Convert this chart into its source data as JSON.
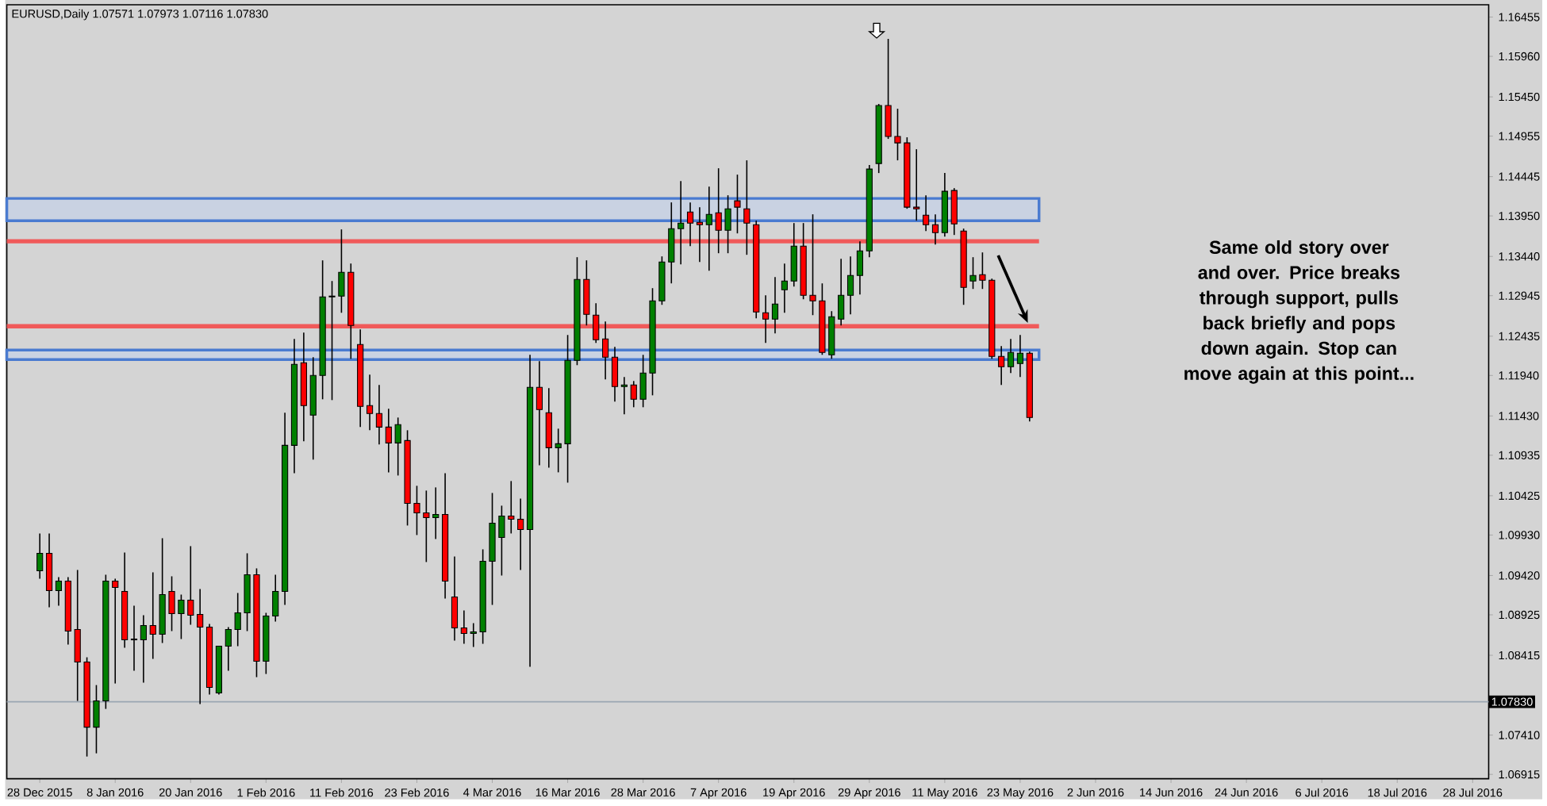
{
  "chart_data": {
    "type": "candlestick",
    "title": "EURUSD,Daily  1.07571 1.07973 1.07116 1.07830",
    "categories": [
      "28 Dec 2015",
      null,
      null,
      null,
      null,
      null,
      null,
      null,
      "8 Jan 2016",
      null,
      null,
      null,
      null,
      null,
      null,
      null,
      "20 Jan 2016",
      null,
      null,
      null,
      null,
      null,
      null,
      null,
      "1 Feb 2016",
      null,
      null,
      null,
      null,
      null,
      null,
      null,
      "11 Feb 2016",
      null,
      null,
      null,
      null,
      null,
      null,
      null,
      "23 Feb 2016",
      null,
      null,
      null,
      null,
      null,
      null,
      null,
      "4 Mar 2016",
      null,
      null,
      null,
      null,
      null,
      null,
      null,
      "16 Mar 2016",
      null,
      null,
      null,
      null,
      null,
      null,
      null,
      "28 Mar 2016",
      null,
      null,
      null,
      null,
      null,
      null,
      null,
      "7 Apr 2016",
      null,
      null,
      null,
      null,
      null,
      null,
      null,
      "19 Apr 2016",
      null,
      null,
      null,
      null,
      null,
      null,
      null,
      "29 Apr 2016",
      null,
      null,
      null,
      null,
      null,
      null,
      null,
      "11 May 2016",
      null,
      null,
      null,
      null,
      null,
      null,
      null,
      "23 May 2016",
      null,
      null,
      null,
      null,
      null,
      null,
      null,
      "2 Jun 2016",
      null,
      null,
      null,
      null,
      null,
      null,
      null,
      "14 Jun 2016",
      null,
      null,
      null,
      null,
      null,
      null,
      null,
      "24 Jun 2016",
      null,
      null,
      null,
      null,
      null,
      null,
      null,
      "6 Jul 2016",
      null,
      null,
      null,
      null,
      null,
      null,
      null,
      "18 Jul 2016",
      null,
      null,
      null,
      null,
      null,
      null,
      null,
      "28 Jul 2016",
      null
    ],
    "ohlc": [
      [
        1.0948,
        1.0995,
        1.0938,
        1.097
      ],
      [
        1.097,
        1.0995,
        1.0902,
        1.0923
      ],
      [
        1.0923,
        1.094,
        1.0904,
        1.0935
      ],
      [
        1.0935,
        1.094,
        1.0855,
        1.0872
      ],
      [
        1.0874,
        1.0949,
        1.0784,
        1.0833
      ],
      [
        1.0833,
        1.0839,
        1.0714,
        1.0751
      ],
      [
        1.0751,
        1.0804,
        1.0718,
        1.0784
      ],
      [
        1.0784,
        1.0943,
        1.0774,
        1.0935
      ],
      [
        1.0935,
        1.0938,
        1.0806,
        1.0927
      ],
      [
        1.0922,
        1.0971,
        1.0851,
        1.0861
      ],
      [
        1.0861,
        1.0904,
        1.0822,
        1.0862
      ],
      [
        1.0861,
        1.0892,
        1.0807,
        1.0879
      ],
      [
        1.0879,
        1.0946,
        1.0837,
        1.0868
      ],
      [
        1.0868,
        1.0989,
        1.0857,
        1.0918
      ],
      [
        1.0922,
        1.0941,
        1.0872,
        1.0894
      ],
      [
        1.0894,
        1.0918,
        1.0862,
        1.0911
      ],
      [
        1.0911,
        1.0979,
        1.088,
        1.0892
      ],
      [
        1.0893,
        1.0925,
        1.078,
        1.0877
      ],
      [
        1.0877,
        1.0881,
        1.0792,
        1.0801
      ],
      [
        1.0794,
        1.0853,
        1.0792,
        1.0853
      ],
      [
        1.0853,
        1.0877,
        1.0822,
        1.0874
      ],
      [
        1.0874,
        1.092,
        1.0853,
        1.0895
      ],
      [
        1.0895,
        1.097,
        1.0872,
        1.0943
      ],
      [
        1.0943,
        1.0951,
        1.0814,
        1.0834
      ],
      [
        1.0834,
        1.0895,
        1.0818,
        1.0891
      ],
      [
        1.0891,
        1.0943,
        1.0884,
        1.0922
      ],
      [
        1.0922,
        1.1147,
        1.0905,
        1.1106
      ],
      [
        1.1106,
        1.124,
        1.1071,
        1.1208
      ],
      [
        1.121,
        1.1248,
        1.1111,
        1.1156
      ],
      [
        1.1144,
        1.1217,
        1.1088,
        1.1194
      ],
      [
        1.1194,
        1.1339,
        1.1164,
        1.1293
      ],
      [
        1.1293,
        1.1313,
        1.1163,
        1.1294
      ],
      [
        1.1294,
        1.1378,
        1.1273,
        1.1324
      ],
      [
        1.1324,
        1.1335,
        1.1215,
        1.1257
      ],
      [
        1.1233,
        1.1252,
        1.1129,
        1.1155
      ],
      [
        1.1156,
        1.1195,
        1.1125,
        1.1146
      ],
      [
        1.1146,
        1.1182,
        1.1107,
        1.1129
      ],
      [
        1.1129,
        1.1152,
        1.1072,
        1.1109
      ],
      [
        1.1109,
        1.1141,
        1.1068,
        1.1132
      ],
      [
        1.1112,
        1.1125,
        1.1005,
        1.1033
      ],
      [
        1.1033,
        1.1055,
        1.0993,
        1.1021
      ],
      [
        1.1021,
        1.1049,
        1.0959,
        1.1015
      ],
      [
        1.1015,
        1.1053,
        1.0988,
        1.1019
      ],
      [
        1.1019,
        1.1071,
        1.0913,
        1.0935
      ],
      [
        1.0915,
        1.0966,
        1.086,
        1.0876
      ],
      [
        1.0876,
        1.0898,
        1.0856,
        1.0869
      ],
      [
        1.0869,
        1.0882,
        1.0852,
        1.0871
      ],
      [
        1.0871,
        1.0975,
        1.0856,
        1.096
      ],
      [
        1.096,
        1.1046,
        1.0905,
        1.1008
      ],
      [
        1.099,
        1.103,
        1.0942,
        1.1017
      ],
      [
        1.1017,
        1.1061,
        1.0995,
        1.1013
      ],
      [
        1.1013,
        1.1039,
        1.0949,
        1.1
      ],
      [
        1.1,
        1.122,
        1.0827,
        1.1179
      ],
      [
        1.1179,
        1.1212,
        1.1081,
        1.1151
      ],
      [
        1.1147,
        1.1178,
        1.1078,
        1.1103
      ],
      [
        1.1103,
        1.1127,
        1.1072,
        1.1108
      ],
      [
        1.1108,
        1.1245,
        1.1059,
        1.1213
      ],
      [
        1.1213,
        1.1343,
        1.1207,
        1.1315
      ],
      [
        1.1315,
        1.1339,
        1.1257,
        1.1271
      ],
      [
        1.127,
        1.1285,
        1.1235,
        1.1239
      ],
      [
        1.124,
        1.1262,
        1.1189,
        1.1217
      ],
      [
        1.1217,
        1.123,
        1.1161,
        1.118
      ],
      [
        1.118,
        1.1192,
        1.1145,
        1.1182
      ],
      [
        1.1182,
        1.1187,
        1.1154,
        1.1164
      ],
      [
        1.1164,
        1.122,
        1.1154,
        1.1197
      ],
      [
        1.1197,
        1.1304,
        1.1169,
        1.1288
      ],
      [
        1.1288,
        1.1344,
        1.1283,
        1.1337
      ],
      [
        1.1337,
        1.1412,
        1.131,
        1.1379
      ],
      [
        1.1379,
        1.1439,
        1.1334,
        1.1386
      ],
      [
        1.14,
        1.1412,
        1.1357,
        1.1386
      ],
      [
        1.1387,
        1.1406,
        1.1337,
        1.1384
      ],
      [
        1.1384,
        1.1432,
        1.1326,
        1.1397
      ],
      [
        1.1399,
        1.1455,
        1.1348,
        1.1377
      ],
      [
        1.1377,
        1.1421,
        1.1348,
        1.1404
      ],
      [
        1.1414,
        1.1447,
        1.1373,
        1.1406
      ],
      [
        1.1404,
        1.1465,
        1.1346,
        1.1386
      ],
      [
        1.1384,
        1.1389,
        1.1266,
        1.1274
      ],
      [
        1.1273,
        1.1295,
        1.1235,
        1.1265
      ],
      [
        1.1265,
        1.1318,
        1.1247,
        1.1284
      ],
      [
        1.1302,
        1.1335,
        1.1273,
        1.1313
      ],
      [
        1.1313,
        1.1386,
        1.1306,
        1.1357
      ],
      [
        1.1357,
        1.1386,
        1.129,
        1.1295
      ],
      [
        1.1295,
        1.1397,
        1.127,
        1.1288
      ],
      [
        1.1288,
        1.131,
        1.122,
        1.1223
      ],
      [
        1.122,
        1.1275,
        1.1215,
        1.1268
      ],
      [
        1.1265,
        1.1341,
        1.1257,
        1.1295
      ],
      [
        1.1295,
        1.1344,
        1.1271,
        1.132
      ],
      [
        1.132,
        1.1363,
        1.1296,
        1.1351
      ],
      [
        1.1351,
        1.1459,
        1.1343,
        1.1454
      ],
      [
        1.1461,
        1.1536,
        1.1449,
        1.1534
      ],
      [
        1.1534,
        1.1618,
        1.1492,
        1.1495
      ],
      [
        1.1495,
        1.153,
        1.1465,
        1.1487
      ],
      [
        1.1487,
        1.1494,
        1.1404,
        1.1406
      ],
      [
        1.1406,
        1.1479,
        1.1389,
        1.1404
      ],
      [
        1.1396,
        1.1421,
        1.1376,
        1.1384
      ],
      [
        1.1384,
        1.1397,
        1.1359,
        1.1374
      ],
      [
        1.1374,
        1.1449,
        1.1369,
        1.1426
      ],
      [
        1.1427,
        1.143,
        1.1371,
        1.1385
      ],
      [
        1.1376,
        1.1379,
        1.1283,
        1.1305
      ],
      [
        1.1313,
        1.1343,
        1.1303,
        1.132
      ],
      [
        1.1321,
        1.1349,
        1.1303,
        1.1314
      ],
      [
        1.1314,
        1.1316,
        1.1215,
        1.1218
      ],
      [
        1.1218,
        1.1231,
        1.1182,
        1.1205
      ],
      [
        1.1205,
        1.124,
        1.1197,
        1.1223
      ],
      [
        1.1209,
        1.1245,
        1.1192,
        1.1222
      ],
      [
        1.1222,
        1.1224,
        1.1136,
        1.1141
      ],
      null,
      null,
      null,
      null,
      null,
      null,
      null,
      null,
      null,
      null,
      null,
      null,
      null,
      null,
      null,
      null,
      null,
      null,
      null,
      null,
      null,
      null,
      null,
      null,
      null,
      null,
      null,
      null,
      null,
      null,
      null,
      null,
      null,
      null,
      null,
      null,
      null,
      null,
      null,
      null,
      null,
      null,
      null,
      null,
      null,
      null,
      null,
      null
    ],
    "colors": [
      "#008000",
      "#ff0000",
      "#008000",
      "#ff0000",
      "#ff0000",
      "#ff0000",
      "#008000",
      "#008000",
      "#ff0000",
      "#ff0000",
      "#008000",
      "#008000",
      "#ff0000",
      "#008000",
      "#ff0000",
      "#008000",
      "#ff0000",
      "#ff0000",
      "#ff0000",
      "#008000",
      "#008000",
      "#008000",
      "#008000",
      "#ff0000",
      "#008000",
      "#008000",
      "#008000",
      "#008000",
      "#ff0000",
      "#008000",
      "#008000",
      "#008000",
      "#008000",
      "#ff0000",
      "#ff0000",
      "#ff0000",
      "#ff0000",
      "#ff0000",
      "#008000",
      "#ff0000",
      "#ff0000",
      "#ff0000",
      "#008000",
      "#ff0000",
      "#ff0000",
      "#ff0000",
      "#008000",
      "#008000",
      "#008000",
      "#008000",
      "#ff0000",
      "#ff0000",
      "#008000",
      "#ff0000",
      "#ff0000",
      "#008000",
      "#008000",
      "#008000",
      "#ff0000",
      "#ff0000",
      "#ff0000",
      "#ff0000",
      "#008000",
      "#ff0000",
      "#008000",
      "#008000",
      "#008000",
      "#008000",
      "#008000",
      "#ff0000",
      "#ff0000",
      "#008000",
      "#ff0000",
      "#008000",
      "#ff0000",
      "#ff0000",
      "#ff0000",
      "#ff0000",
      "#008000",
      "#008000",
      "#008000",
      "#ff0000",
      "#ff0000",
      "#ff0000",
      "#008000",
      "#008000",
      "#008000",
      "#008000",
      "#008000",
      "#008000",
      "#ff0000",
      "#ff0000",
      "#ff0000",
      "#ff0000",
      "#ff0000",
      "#ff0000",
      "#008000",
      "#ff0000",
      "#ff0000",
      "#008000",
      "#ff0000",
      "#ff0000",
      "#ff0000",
      "#008000",
      "#008000",
      "#ff0000",
      null,
      null,
      null,
      null,
      null,
      null,
      null,
      null,
      null,
      null,
      null,
      null,
      null,
      null,
      null,
      null,
      null,
      null,
      null,
      null,
      null,
      null,
      null,
      null,
      null,
      null,
      null,
      null,
      null,
      null,
      null,
      null,
      null,
      null,
      null,
      null,
      null,
      null,
      null,
      null,
      null,
      null,
      null,
      null,
      null,
      null,
      null,
      null
    ],
    "ylim": [
      1.0686,
      1.1661
    ],
    "yticks": [
      1.16455,
      {
        "value": 1.1596,
        "label": "1.15960"
      },
      {
        "value": 1.1545,
        "label": "1.15450"
      },
      1.14955,
      1.14445,
      {
        "value": 1.1395,
        "label": "1.13950"
      },
      {
        "value": 1.1344,
        "label": "1.13440"
      },
      1.12945,
      1.12435,
      {
        "value": 1.1194,
        "label": "1.11940"
      },
      {
        "value": 1.1143,
        "label": "1.11430"
      },
      1.10935,
      1.10425,
      {
        "value": 1.0993,
        "label": "1.09930"
      },
      {
        "value": 1.0942,
        "label": "1.09420"
      },
      1.08925,
      1.08415,
      {
        "value": 1.0741,
        "label": "1.07410"
      },
      1.06915
    ],
    "ref_lines": [
      {
        "axis": "y",
        "value": 1.0783,
        "label": "1.07830",
        "color": "#9aa6b2"
      },
      {
        "axis": "y",
        "value": 1.1363,
        "color": "#f05a5a"
      },
      {
        "axis": "y",
        "value": 1.1256,
        "color": "#f05a5a"
      }
    ],
    "bands": [
      {
        "axis": "y",
        "from": 1.1389,
        "to": 1.1417,
        "color": "#4a7bd0"
      },
      {
        "axis": "y",
        "from": 1.1214,
        "to": 1.1226,
        "color": "#4a7bd0"
      }
    ],
    "annotations": [
      "Same old story over and over. Price breaks through support, pulls back briefly and pops down again. Stop can move again at this point..."
    ]
  }
}
